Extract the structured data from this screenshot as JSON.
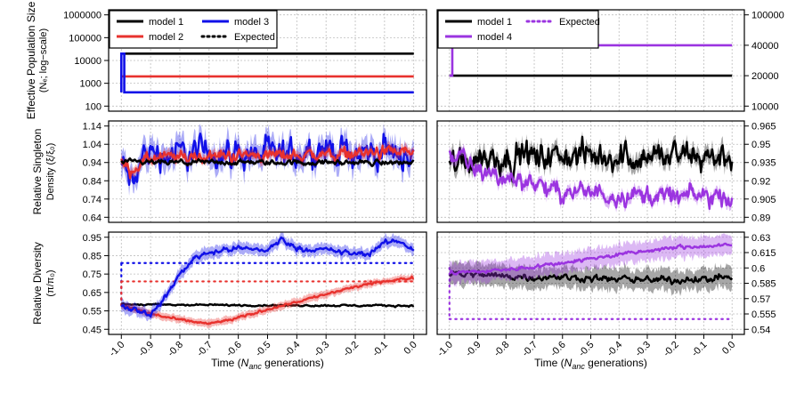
{
  "figure": {
    "ylabel_rows": [
      {
        "lines": [
          "Effective Population Size",
          "(Nₑ; log−scale)"
        ]
      },
      {
        "lines": [
          "Relative Singleton",
          "Density (ξ/ξ₀)"
        ]
      },
      {
        "lines": [
          "Relative Diversity",
          "(π/π₀)"
        ]
      }
    ],
    "xlabel_prefix": "Time (",
    "xlabel_italic": "N",
    "xlabel_sub": "anc",
    "xlabel_suffix": " generations)"
  },
  "colors": {
    "model1": "#000000",
    "model2": "#e8322e",
    "model3": "#1010e8",
    "model4": "#9b34e0",
    "grid": "#bdbdbd"
  },
  "chart_data": [
    {
      "type": "line",
      "panel": "Ne-left",
      "scale": "log",
      "ylim": [
        100,
        1000000
      ],
      "ticks": [
        "100",
        "1000",
        "10000",
        "100000",
        "1000000"
      ],
      "tick_axis": "left",
      "legend": [
        {
          "label": "model 1",
          "series": "model1",
          "style": "solid"
        },
        {
          "label": "model 3",
          "series": "model3",
          "style": "solid"
        },
        {
          "label": "model 2",
          "series": "model2",
          "style": "solid"
        },
        {
          "label": "Expected",
          "series": "model1",
          "style": "dotted"
        }
      ],
      "series": [
        {
          "name": "model 1",
          "key": "model1",
          "x": [
            -1.0,
            0.0
          ],
          "values": [
            20000,
            20000
          ]
        },
        {
          "name": "model 2",
          "key": "model2",
          "x": [
            -1.0,
            0.0
          ],
          "values": [
            2000,
            2000
          ]
        },
        {
          "name": "model 3",
          "key": "model3",
          "x": [
            -1.0,
            -1.0,
            -0.99,
            -0.99,
            0.0
          ],
          "values": [
            400,
            20000,
            20000,
            400,
            400
          ]
        }
      ]
    },
    {
      "type": "line",
      "panel": "Ne-right",
      "scale": "linear",
      "ylim": [
        10000,
        100000
      ],
      "ticks": [
        "10000",
        "20000",
        "40000",
        "100000"
      ],
      "tick_values": [
        10000,
        20000,
        40000,
        100000
      ],
      "tick_axis": "right",
      "legend": [
        {
          "label": "model 1",
          "series": "model1",
          "style": "solid"
        },
        {
          "label": "Expected",
          "series": "model4",
          "style": "dotted"
        },
        {
          "label": "model 4",
          "series": "model4",
          "style": "solid"
        }
      ],
      "series": [
        {
          "name": "model 1",
          "key": "model1",
          "x": [
            -1.0,
            0.0
          ],
          "values": [
            20000,
            20000
          ]
        },
        {
          "name": "model 4",
          "key": "model4",
          "x": [
            -1.0,
            -0.99,
            -0.99,
            0.0
          ],
          "values": [
            20000,
            20000,
            40000,
            40000
          ]
        }
      ]
    },
    {
      "type": "line",
      "panel": "singleton-left",
      "ylim": [
        0.64,
        1.14
      ],
      "ticks": [
        "0.64",
        "0.74",
        "0.84",
        "0.94",
        "1.04",
        "1.14"
      ],
      "tick_axis": "left",
      "series": [
        {
          "name": "model 3",
          "key": "model3",
          "x": [
            -1.0,
            -0.98,
            -0.96,
            -0.94,
            -0.92,
            -0.9,
            -0.85,
            -0.8,
            -0.7,
            -0.6,
            -0.5,
            -0.45,
            -0.4,
            -0.3,
            -0.2,
            -0.1,
            0.0
          ],
          "values": [
            0.93,
            0.88,
            0.8,
            0.92,
            0.99,
            1.0,
            0.98,
            0.99,
            1.0,
            0.99,
            0.99,
            0.96,
            1.0,
            1.01,
            0.99,
            1.0,
            0.98
          ],
          "noise": 0.035,
          "band": 0.06
        },
        {
          "name": "model 2",
          "key": "model2",
          "x": [
            -1.0,
            -0.97,
            -0.9,
            -0.8,
            -0.6,
            -0.4,
            -0.2,
            0.0
          ],
          "values": [
            0.94,
            0.9,
            0.96,
            0.97,
            0.98,
            0.98,
            0.99,
            1.0
          ],
          "noise": 0.015,
          "band": 0.025
        },
        {
          "name": "model 1",
          "key": "model1",
          "x": [
            -1.0,
            0.0
          ],
          "values": [
            0.94,
            0.94
          ],
          "noise": 0.006,
          "band": 0.01
        }
      ]
    },
    {
      "type": "line",
      "panel": "singleton-right",
      "ylim": [
        0.89,
        0.965
      ],
      "ticks": [
        "0.89",
        "0.905",
        "0.92",
        "0.935",
        "0.95",
        "0.965"
      ],
      "tick_axis": "right",
      "series": [
        {
          "name": "model 1",
          "key": "model1",
          "x": [
            -1.0,
            -0.9,
            -0.5,
            0.0
          ],
          "values": [
            0.935,
            0.94,
            0.94,
            0.94
          ],
          "noise": 0.005,
          "band": 0.006
        },
        {
          "name": "model 4",
          "key": "model4",
          "x": [
            -1.0,
            -0.97,
            -0.9,
            -0.8,
            -0.7,
            -0.65,
            -0.6,
            -0.4,
            -0.2,
            0.0
          ],
          "values": [
            0.94,
            0.94,
            0.928,
            0.922,
            0.92,
            0.912,
            0.911,
            0.909,
            0.907,
            0.908
          ],
          "noise": 0.0035,
          "band": 0.004
        }
      ]
    },
    {
      "type": "line",
      "panel": "diversity-left",
      "ylim": [
        0.45,
        0.95
      ],
      "ticks": [
        "0.45",
        "0.55",
        "0.65",
        "0.75",
        "0.85",
        "0.95"
      ],
      "tick_axis": "left",
      "expected": [
        {
          "key": "model3",
          "value": 0.81,
          "start_low": 0.58
        },
        {
          "key": "model2",
          "value": 0.71,
          "start_low": 0.58
        }
      ],
      "series": [
        {
          "name": "model 1",
          "key": "model1",
          "x": [
            -1.0,
            -0.5,
            0.0
          ],
          "values": [
            0.585,
            0.58,
            0.578
          ],
          "noise": 0.002,
          "band": 0.006
        },
        {
          "name": "model 2",
          "key": "model2",
          "x": [
            -1.0,
            -0.9,
            -0.8,
            -0.7,
            -0.6,
            -0.5,
            -0.4,
            -0.3,
            -0.2,
            -0.1,
            0.0
          ],
          "values": [
            0.58,
            0.535,
            0.5,
            0.48,
            0.51,
            0.56,
            0.6,
            0.64,
            0.68,
            0.71,
            0.73
          ],
          "noise": 0.003,
          "band": 0.02
        },
        {
          "name": "model 3",
          "key": "model3",
          "x": [
            -1.0,
            -0.95,
            -0.9,
            -0.85,
            -0.8,
            -0.75,
            -0.7,
            -0.6,
            -0.5,
            -0.45,
            -0.4,
            -0.3,
            -0.2,
            -0.15,
            -0.1,
            -0.05,
            0.0
          ],
          "values": [
            0.58,
            0.56,
            0.53,
            0.62,
            0.75,
            0.84,
            0.87,
            0.89,
            0.88,
            0.94,
            0.89,
            0.88,
            0.86,
            0.86,
            0.92,
            0.93,
            0.88
          ],
          "noise": 0.006,
          "band": 0.03
        }
      ]
    },
    {
      "type": "line",
      "panel": "diversity-right",
      "ylim": [
        0.54,
        0.63
      ],
      "ticks": [
        "0.54",
        "0.555",
        "0.57",
        "0.585",
        "0.6",
        "0.615",
        "0.63"
      ],
      "tick_axis": "right",
      "expected": [
        {
          "key": "model4",
          "value": 0.55,
          "start_low": 0.6
        }
      ],
      "series": [
        {
          "name": "model 1",
          "key": "model1",
          "x": [
            -1.0,
            -0.8,
            -0.5,
            -0.3,
            -0.1,
            0.0
          ],
          "values": [
            0.595,
            0.592,
            0.59,
            0.588,
            0.589,
            0.592
          ],
          "noise": 0.0015,
          "band": 0.01
        },
        {
          "name": "model 4",
          "key": "model4",
          "x": [
            -1.0,
            -0.8,
            -0.6,
            -0.4,
            -0.2,
            0.0
          ],
          "values": [
            0.595,
            0.598,
            0.605,
            0.613,
            0.62,
            0.622
          ],
          "noise": 0.0008,
          "band": 0.01
        }
      ]
    }
  ],
  "x_axis": {
    "xlim": [
      -1.0,
      0.0
    ],
    "ticks": [
      "-1.0",
      "-0.9",
      "-0.8",
      "-0.7",
      "-0.6",
      "-0.5",
      "-0.4",
      "-0.3",
      "-0.2",
      "-0.1",
      "0.0"
    ],
    "tick_values": [
      -1.0,
      -0.9,
      -0.8,
      -0.7,
      -0.6,
      -0.5,
      -0.4,
      -0.3,
      -0.2,
      -0.1,
      0.0
    ]
  }
}
